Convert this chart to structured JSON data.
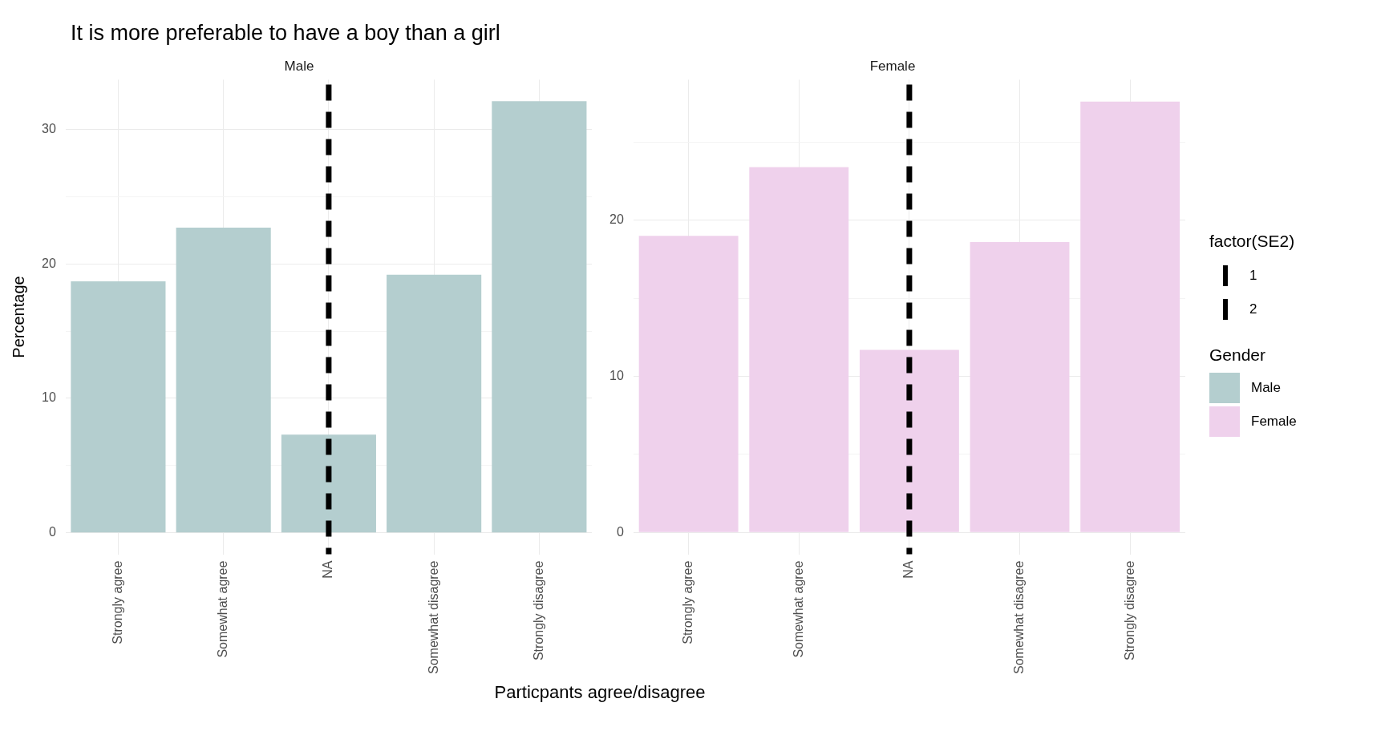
{
  "chart_data": [
    {
      "type": "bar",
      "title": "It is more preferable to have a boy than a girl",
      "subtitle": "Male",
      "xlabel": "Particpants agree/disagree",
      "ylabel": "Percentage",
      "categories": [
        "Strongly agree",
        "Somewhat agree",
        "NA",
        "Somewhat disagree",
        "Strongly disagree"
      ],
      "series": [
        {
          "name": "Male",
          "color": "#b4cecf",
          "values": [
            18.7,
            22.7,
            7.3,
            19.2,
            32.1
          ]
        }
      ],
      "ylim": [
        -1.6,
        33.7
      ],
      "yticks": [
        0,
        {
          "value": 5,
          "label": null
        },
        10,
        {
          "value": 15,
          "label": null
        },
        20,
        {
          "value": 25,
          "label": null
        },
        30
      ],
      "grid": true,
      "legend": "right",
      "ref_lines": [
        {
          "axis": "x",
          "value": "NA",
          "color": "#000000",
          "line_style": "dashed"
        }
      ]
    },
    {
      "type": "bar",
      "subtitle": "Female",
      "categories": [
        "Strongly agree",
        "Somewhat agree",
        "NA",
        "Somewhat disagree",
        "Strongly disagree"
      ],
      "series": [
        {
          "name": "Female",
          "color": "#efd1ec",
          "values": [
            19.0,
            23.4,
            11.7,
            18.6,
            27.6
          ]
        }
      ],
      "ylim": [
        -1.4,
        29.0
      ],
      "yticks": [
        0,
        {
          "value": 5,
          "label": null
        },
        10,
        {
          "value": 15,
          "label": null
        },
        20,
        {
          "value": 25,
          "label": null
        }
      ],
      "grid": true,
      "legend": "right",
      "legend_title": "Gender",
      "annotations": [
        "factor(SE2)",
        "1",
        "2"
      ],
      "ref_lines": [
        {
          "axis": "x",
          "value": "NA",
          "color": "#000000",
          "line_style": "dashed"
        }
      ]
    }
  ]
}
